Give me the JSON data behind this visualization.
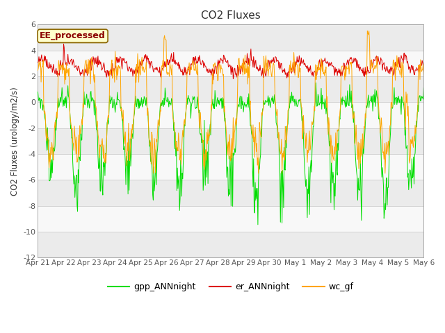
{
  "title": "CO2 Fluxes",
  "ylabel": "CO2 Fluxes (urology/m2/s)",
  "ylim": [
    -12,
    6
  ],
  "yticks": [
    -12,
    -10,
    -8,
    -6,
    -4,
    -2,
    0,
    2,
    4,
    6
  ],
  "xtick_labels": [
    "Apr 21",
    "Apr 22",
    "Apr 23",
    "Apr 24",
    "Apr 25",
    "Apr 26",
    "Apr 27",
    "Apr 28",
    "Apr 29",
    "Apr 30",
    "May 1",
    "May 2",
    "May 3",
    "May 4",
    "May 5",
    "May 6"
  ],
  "color_gpp": "#00DD00",
  "color_er": "#DD0000",
  "color_wc": "#FFA500",
  "label_gpp": "gpp_ANNnight",
  "label_er": "er_ANNnight",
  "label_wc": "wc_gf",
  "box_label": "EE_processed",
  "box_facecolor": "#FFFFCC",
  "box_edgecolor": "#8B6600",
  "box_textcolor": "#8B0000",
  "band_light": "#EBEBEB",
  "band_white": "#F8F8F8",
  "n_days": 15,
  "n_per_day": 48,
  "seed": 7
}
